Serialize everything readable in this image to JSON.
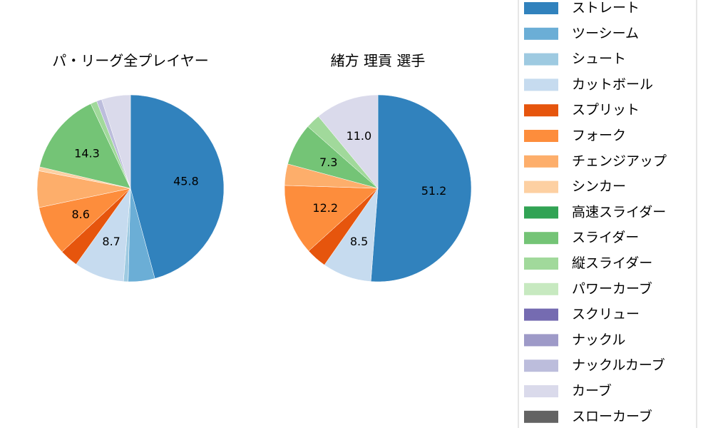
{
  "colors": {
    "ストレート": "#3182bd",
    "ツーシーム": "#6baed6",
    "シュート": "#9ecae1",
    "カットボール": "#c6dbef",
    "スプリット": "#e6550d",
    "フォーク": "#fd8d3c",
    "チェンジアップ": "#fdae6b",
    "シンカー": "#fdd0a2",
    "高速スライダー": "#31a354",
    "スライダー": "#74c476",
    "縦スライダー": "#a1d99b",
    "パワーカーブ": "#c7e9c0",
    "スクリュー": "#756bb1",
    "ナックル": "#9e9ac8",
    "ナックルカーブ": "#bcbddc",
    "カーブ": "#dadaeb",
    "スローカーブ": "#636363"
  },
  "legend": [
    "ストレート",
    "ツーシーム",
    "シュート",
    "カットボール",
    "スプリット",
    "フォーク",
    "チェンジアップ",
    "シンカー",
    "高速スライダー",
    "スライダー",
    "縦スライダー",
    "パワーカーブ",
    "スクリュー",
    "ナックル",
    "ナックルカーブ",
    "カーブ",
    "スローカーブ"
  ],
  "chart_data": [
    {
      "type": "pie",
      "title": "パ・リーグ全プレイヤー",
      "slices": [
        {
          "name": "ストレート",
          "value": 45.8,
          "label": "45.8"
        },
        {
          "name": "ツーシーム",
          "value": 4.6,
          "label": ""
        },
        {
          "name": "シュート",
          "value": 0.8,
          "label": ""
        },
        {
          "name": "カットボール",
          "value": 8.7,
          "label": "8.7"
        },
        {
          "name": "スプリット",
          "value": 3.2,
          "label": ""
        },
        {
          "name": "フォーク",
          "value": 8.6,
          "label": "8.6"
        },
        {
          "name": "チェンジアップ",
          "value": 6.3,
          "label": ""
        },
        {
          "name": "シンカー",
          "value": 0.7,
          "label": ""
        },
        {
          "name": "スライダー",
          "value": 14.3,
          "label": "14.3"
        },
        {
          "name": "縦スライダー",
          "value": 1.1,
          "label": ""
        },
        {
          "name": "ナックルカーブ",
          "value": 0.9,
          "label": ""
        },
        {
          "name": "カーブ",
          "value": 5.0,
          "label": ""
        }
      ]
    },
    {
      "type": "pie",
      "title": "緒方 理貢  選手",
      "slices": [
        {
          "name": "ストレート",
          "value": 51.2,
          "label": "51.2"
        },
        {
          "name": "カットボール",
          "value": 8.5,
          "label": "8.5"
        },
        {
          "name": "スプリット",
          "value": 3.6,
          "label": ""
        },
        {
          "name": "フォーク",
          "value": 12.2,
          "label": "12.2"
        },
        {
          "name": "チェンジアップ",
          "value": 3.7,
          "label": ""
        },
        {
          "name": "スライダー",
          "value": 7.3,
          "label": "7.3"
        },
        {
          "name": "縦スライダー",
          "value": 2.5,
          "label": ""
        },
        {
          "name": "カーブ",
          "value": 11.0,
          "label": "11.0"
        }
      ]
    }
  ]
}
